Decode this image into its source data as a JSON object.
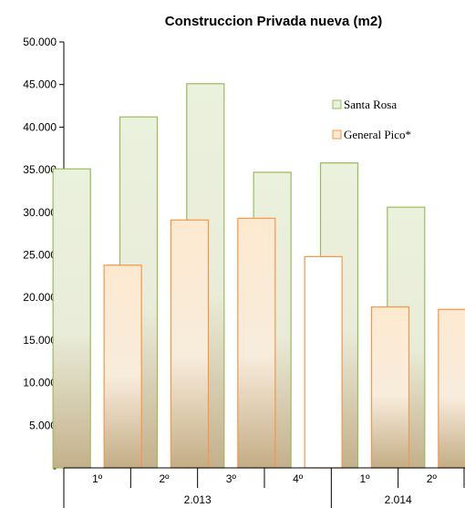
{
  "chart_data": {
    "type": "bar",
    "title": "Construccion Privada nueva (m2)",
    "xlabel": "",
    "ylabel": "",
    "ylim": [
      0,
      50000
    ],
    "y_ticks": [
      "-",
      "5.000",
      "10.000",
      "15.000",
      "20.000",
      "25.000",
      "30.000",
      "35.000",
      "40.000",
      "45.000",
      "50.000"
    ],
    "categories": [
      "1º",
      "2º",
      "3º",
      "4º",
      "1º",
      "2º"
    ],
    "groups": [
      {
        "label": "2.013",
        "span": 4
      },
      {
        "label": "2.014",
        "span": 2
      }
    ],
    "series": [
      {
        "name": "Santa Rosa",
        "values": [
          35100,
          41200,
          45100,
          34700,
          35800,
          30600
        ]
      },
      {
        "name": "General  Pico*",
        "values": [
          23800,
          29100,
          29300,
          24800,
          18900,
          18600
        ]
      }
    ],
    "legend_position": "right",
    "grid": false
  },
  "colors": {
    "santa_rosa_stroke": "#9bbb59",
    "santa_rosa_fill_top": "#eaf1dd",
    "santa_rosa_fill_bottom": "#c4b08b",
    "general_pico_stroke": "#f79646",
    "general_pico_fill_top": "#fde9d0",
    "general_pico_fill_bottom": "#c4ad85"
  }
}
